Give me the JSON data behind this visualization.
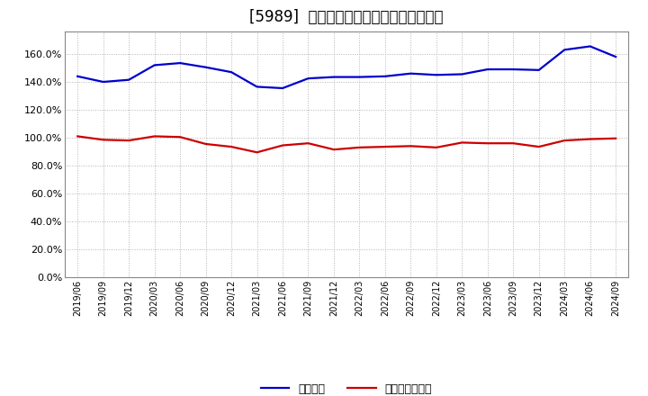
{
  "title": "[5989]  固定比率、固定長期適合率の推移",
  "x_labels": [
    "2019/06",
    "2019/09",
    "2019/12",
    "2020/03",
    "2020/06",
    "2020/09",
    "2020/12",
    "2021/03",
    "2021/06",
    "2021/09",
    "2021/12",
    "2022/03",
    "2022/06",
    "2022/09",
    "2022/12",
    "2023/03",
    "2023/06",
    "2023/09",
    "2023/12",
    "2024/03",
    "2024/06",
    "2024/09"
  ],
  "fixed_ratio": [
    144.0,
    140.0,
    141.5,
    152.0,
    153.5,
    150.5,
    147.0,
    136.5,
    135.5,
    142.5,
    143.5,
    143.5,
    144.0,
    146.0,
    145.0,
    145.5,
    149.0,
    149.0,
    148.5,
    163.0,
    165.5,
    158.0
  ],
  "fixed_long_ratio": [
    101.0,
    98.5,
    98.0,
    101.0,
    100.5,
    95.5,
    93.5,
    89.5,
    94.5,
    96.0,
    91.5,
    93.0,
    93.5,
    94.0,
    93.0,
    96.5,
    96.0,
    96.0,
    93.5,
    98.0,
    99.0,
    99.5
  ],
  "line1_color": "#0000cc",
  "line2_color": "#cc0000",
  "legend1": "固定比率",
  "legend2": "固定長期適合率",
  "ylim": [
    0,
    176
  ],
  "yticks": [
    0,
    20,
    40,
    60,
    80,
    100,
    120,
    140,
    160
  ],
  "background_color": "#ffffff",
  "grid_color": "#aaaaaa",
  "title_fontsize": 12
}
